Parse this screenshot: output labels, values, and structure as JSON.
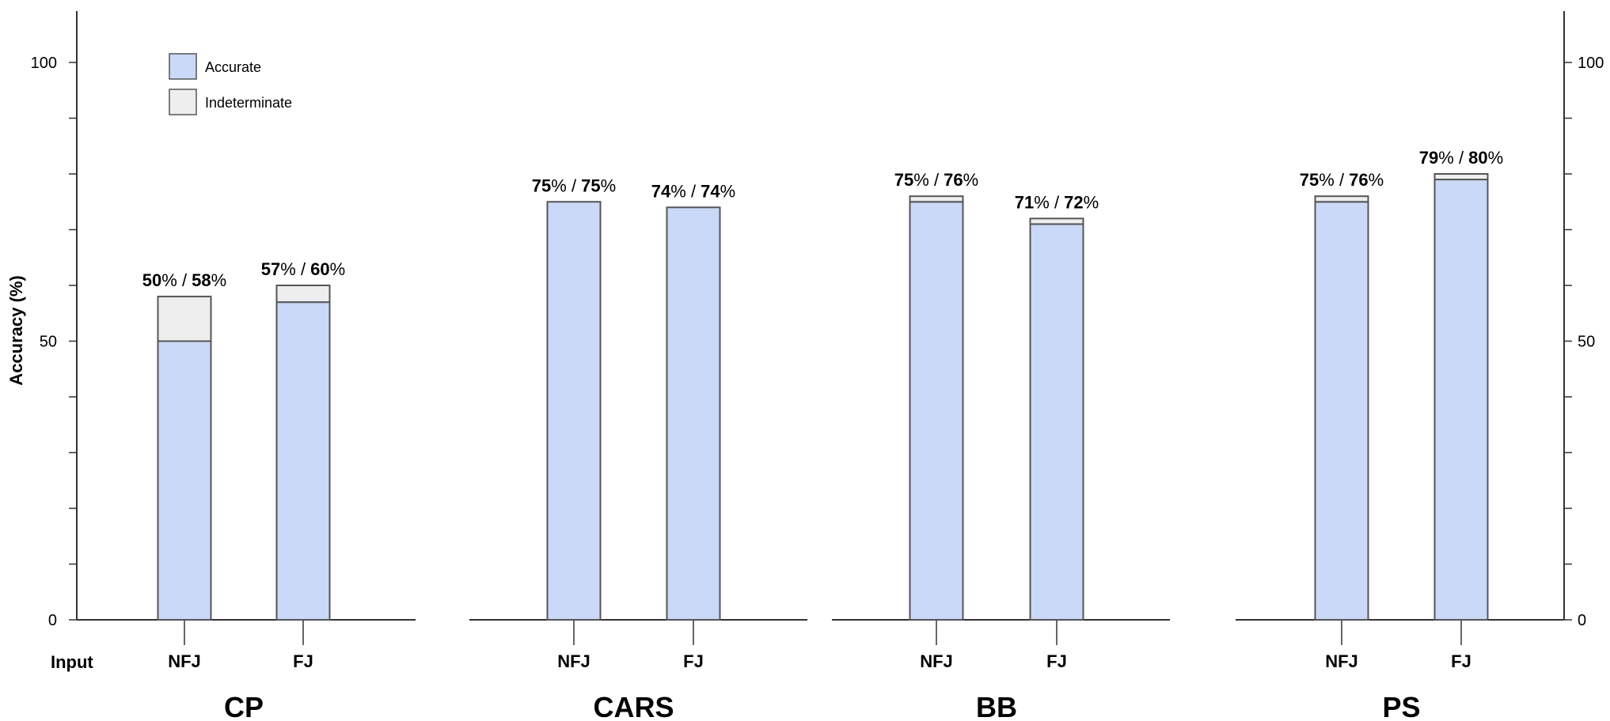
{
  "chart_data": {
    "type": "bar",
    "stacked": true,
    "ylabel": "Accuracy (%)",
    "xlabel": "Input",
    "ylim": [
      0,
      100
    ],
    "yticks": [
      0,
      50,
      100
    ],
    "secondary_y_axis": true,
    "grid": false,
    "legend": {
      "placement": "top-left",
      "entries": [
        {
          "name": "Accurate",
          "color": "#c9d9f7"
        },
        {
          "name": "Indeterminate",
          "color": "#eeeeee"
        }
      ]
    },
    "categories": [
      "NFJ",
      "FJ"
    ],
    "panels": [
      {
        "title": "CP",
        "series": [
          {
            "name": "Accurate",
            "values": [
              50,
              57
            ]
          },
          {
            "name": "Indeterminate",
            "values": [
              8,
              3
            ]
          }
        ],
        "labels": [
          {
            "a": "50",
            "b": "58"
          },
          {
            "a": "57",
            "b": "60"
          }
        ]
      },
      {
        "title": "CARS",
        "series": [
          {
            "name": "Accurate",
            "values": [
              75,
              74
            ]
          },
          {
            "name": "Indeterminate",
            "values": [
              0,
              0
            ]
          }
        ],
        "labels": [
          {
            "a": "75",
            "b": "75"
          },
          {
            "a": "74",
            "b": "74"
          }
        ]
      },
      {
        "title": "BB",
        "series": [
          {
            "name": "Accurate",
            "values": [
              75,
              71
            ]
          },
          {
            "name": "Indeterminate",
            "values": [
              1,
              1
            ]
          }
        ],
        "labels": [
          {
            "a": "75",
            "b": "76"
          },
          {
            "a": "71",
            "b": "72"
          }
        ]
      },
      {
        "title": "PS",
        "series": [
          {
            "name": "Accurate",
            "values": [
              75,
              79
            ]
          },
          {
            "name": "Indeterminate",
            "values": [
              1,
              1
            ]
          }
        ],
        "labels": [
          {
            "a": "75",
            "b": "76"
          },
          {
            "a": "79",
            "b": "80"
          }
        ]
      }
    ],
    "colors": {
      "accurate": "#c9d9f7",
      "indeterminate": "#eeeeee",
      "outline": "#555555"
    }
  }
}
